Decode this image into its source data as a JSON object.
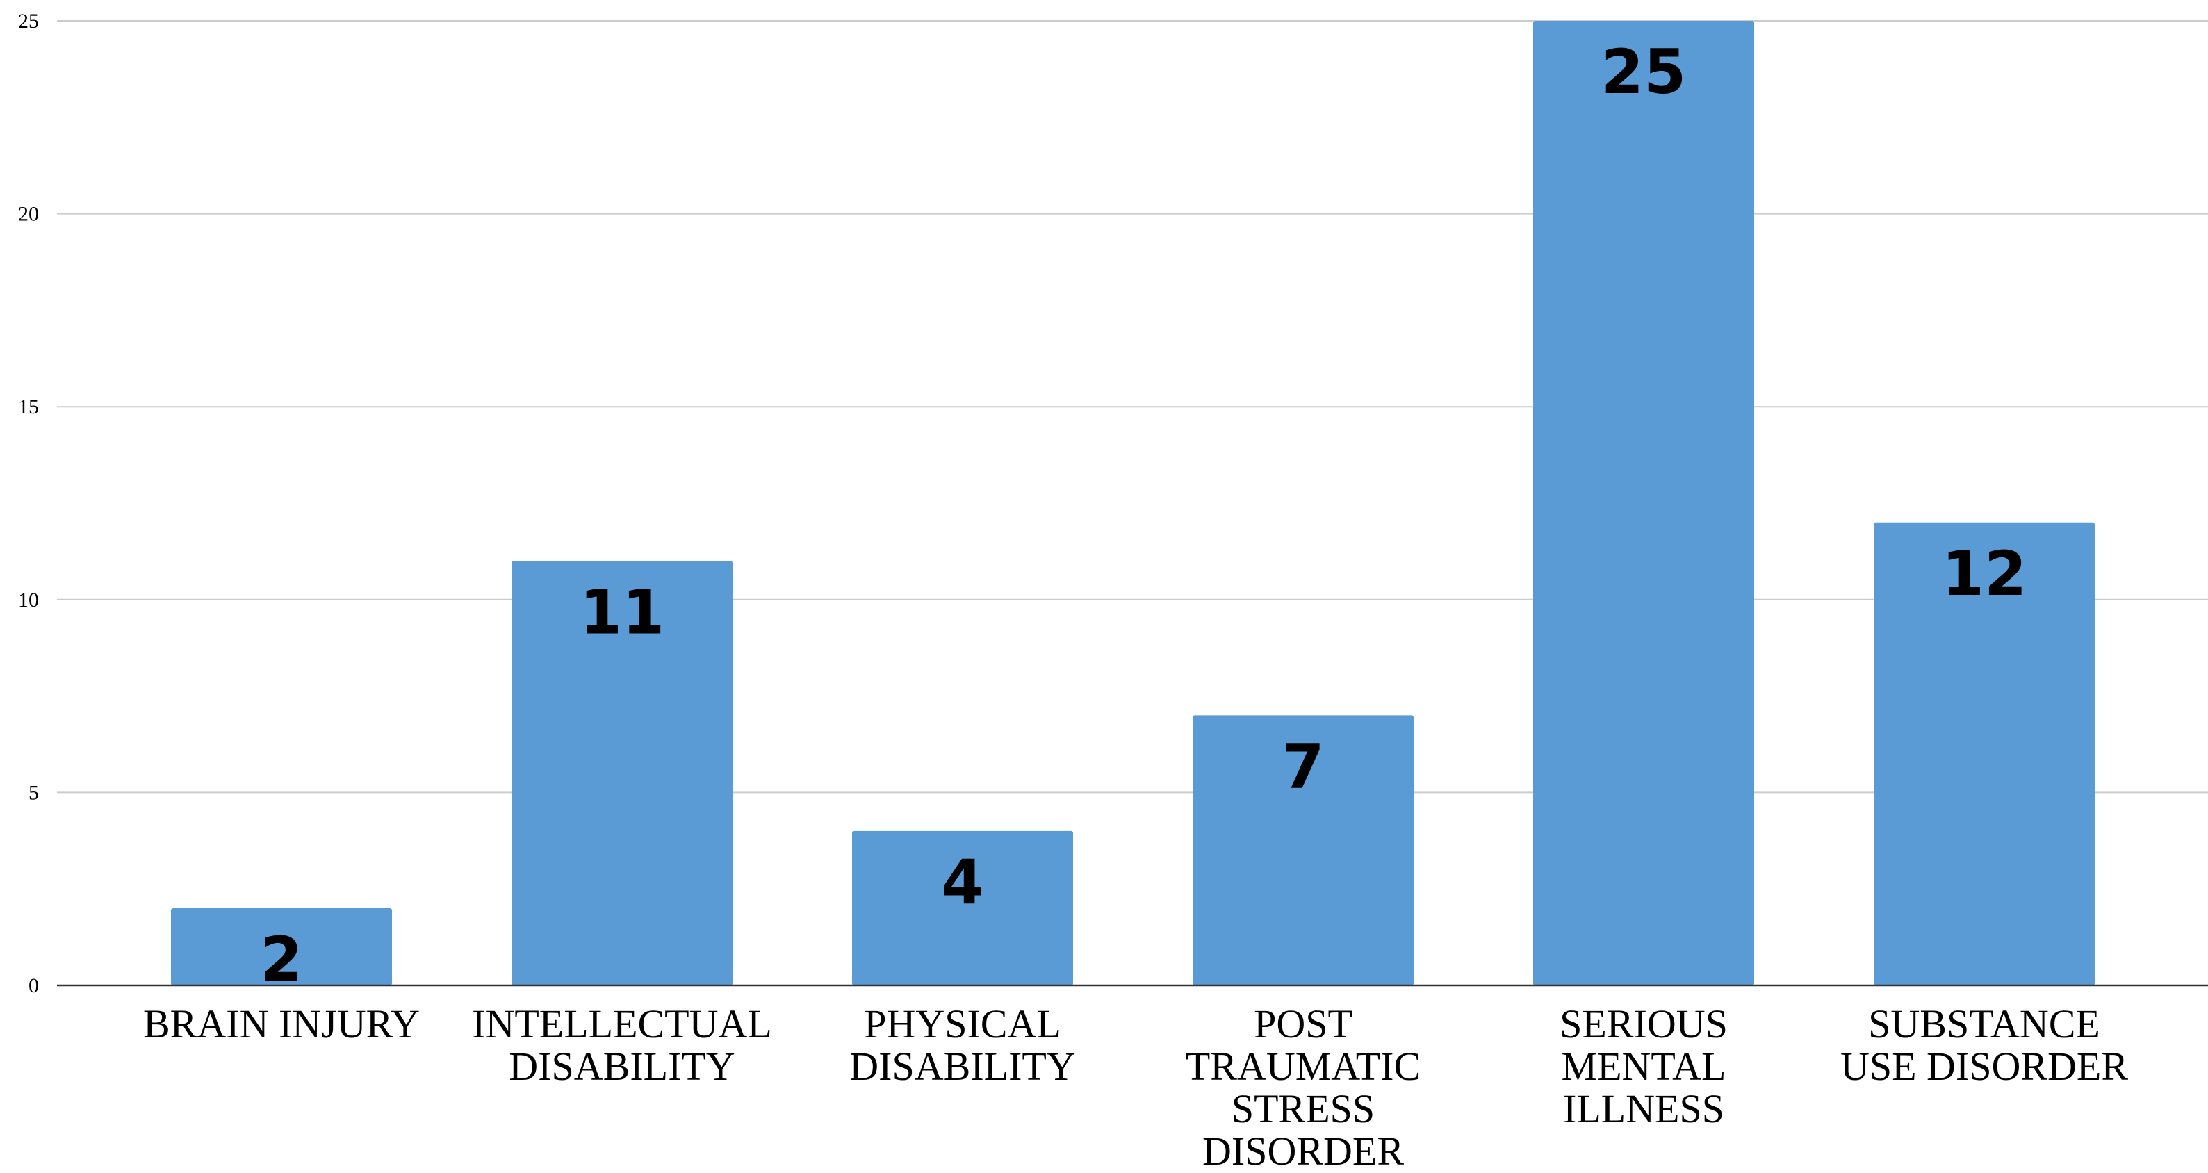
{
  "chart_data": {
    "type": "bar",
    "title": "",
    "xlabel": "",
    "ylabel": "",
    "categories": [
      [
        "BRAIN INJURY"
      ],
      [
        "INTELLECTUAL",
        "DISABILITY"
      ],
      [
        "PHYSICAL",
        "DISABILITY"
      ],
      [
        "POST",
        "TRAUMATIC",
        "STRESS",
        "DISORDER"
      ],
      [
        "SERIOUS",
        "MENTAL",
        "ILLNESS"
      ],
      [
        "SUBSTANCE",
        "USE DISORDER"
      ]
    ],
    "values": [
      2,
      11,
      4,
      7,
      25,
      12
    ],
    "data_labels": [
      "2",
      "11",
      "4",
      "7",
      "25",
      "12"
    ],
    "ylim": [
      0,
      25
    ],
    "yticks": [
      0,
      5,
      10,
      15,
      20,
      25
    ],
    "grid": true,
    "legend": "none",
    "bar_color": "#5b9bd5"
  }
}
